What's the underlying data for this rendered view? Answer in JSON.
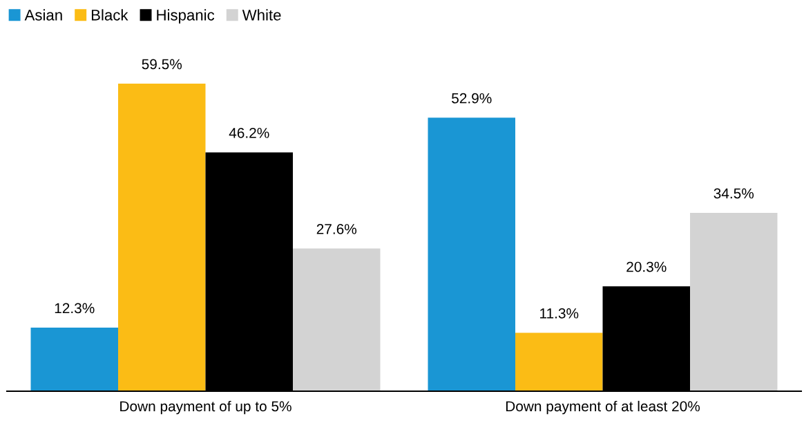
{
  "chart_data": {
    "type": "bar",
    "categories": [
      "Down payment of up to 5%",
      "Down payment of at least 20%"
    ],
    "series": [
      {
        "name": "Asian",
        "color": "#1a96d4",
        "values": [
          12.3,
          52.9
        ],
        "value_labels": [
          "12.3%",
          "52.9%"
        ]
      },
      {
        "name": "Black",
        "color": "#fbbc15",
        "values": [
          59.5,
          11.3
        ],
        "value_labels": [
          "59.5%",
          "11.3%"
        ]
      },
      {
        "name": "Hispanic",
        "color": "#000000",
        "values": [
          46.2,
          20.3
        ],
        "value_labels": [
          "46.2%",
          "20.3%"
        ]
      },
      {
        "name": "White",
        "color": "#d3d3d3",
        "values": [
          27.6,
          34.5
        ],
        "value_labels": [
          "27.6%",
          "34.5%"
        ]
      }
    ],
    "tick_labels": "x",
    "grid": false,
    "legend": "top left"
  }
}
